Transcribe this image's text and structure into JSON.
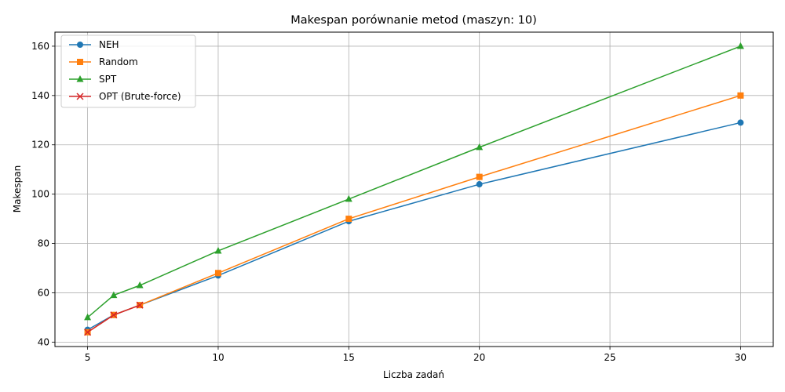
{
  "chart_data": {
    "type": "line",
    "title": "Makespan porównanie metod (maszyn: 10)",
    "xlabel": "Liczba zadań",
    "ylabel": "Makespan",
    "xlim": [
      3.75,
      31.25
    ],
    "ylim": [
      38.2,
      165.7
    ],
    "xticks": [
      5,
      10,
      15,
      20,
      25,
      30
    ],
    "yticks": [
      40,
      60,
      80,
      100,
      120,
      140,
      160
    ],
    "grid": true,
    "legend_position": "upper-left",
    "series": [
      {
        "name": "NEH",
        "color": "#1f77b4",
        "marker": "circle",
        "x": [
          5,
          6,
          7,
          10,
          15,
          20,
          30
        ],
        "y": [
          45,
          51,
          55,
          67,
          89,
          104,
          129
        ]
      },
      {
        "name": "Random",
        "color": "#ff7f0e",
        "marker": "square",
        "x": [
          5,
          6,
          7,
          10,
          15,
          20,
          30
        ],
        "y": [
          44,
          51,
          55,
          68,
          90,
          107,
          140
        ]
      },
      {
        "name": "SPT",
        "color": "#2ca02c",
        "marker": "triangle",
        "x": [
          5,
          6,
          7,
          10,
          15,
          20,
          30
        ],
        "y": [
          50,
          59,
          63,
          77,
          98,
          119,
          160
        ]
      },
      {
        "name": "OPT (Brute-force)",
        "color": "#d62728",
        "marker": "x",
        "x": [
          5,
          6,
          7
        ],
        "y": [
          44,
          51,
          55
        ]
      }
    ]
  }
}
